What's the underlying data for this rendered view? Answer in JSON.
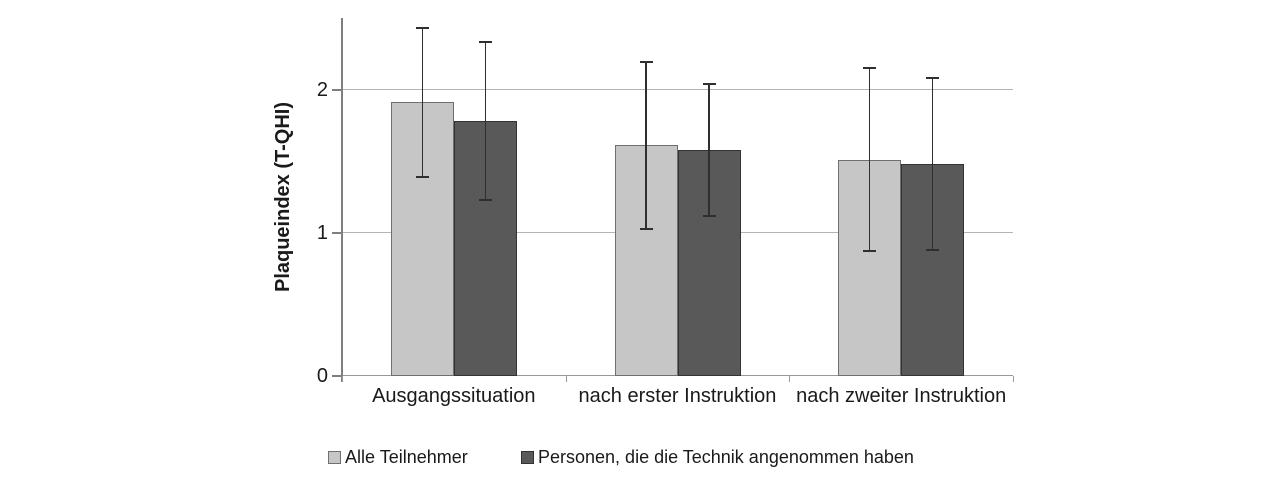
{
  "figure": {
    "background": "#ffffff"
  },
  "chart_data": {
    "type": "bar",
    "title": "",
    "categories": [
      "Ausgangssituation",
      "nach erster Instruktion",
      "nach zweiter Instruktion"
    ],
    "series": [
      {
        "name": "Alle Teilnehmer",
        "fill": "#c6c6c6",
        "border": "#6f6f6f",
        "values": [
          1.91,
          1.61,
          1.51
        ],
        "errors": [
          0.52,
          0.58,
          0.64
        ]
      },
      {
        "name": "Personen, die die Technik angenommen haben",
        "fill": "#595959",
        "border": "#333333",
        "values": [
          1.78,
          1.58,
          1.48
        ],
        "errors": [
          0.55,
          0.46,
          0.6
        ]
      }
    ],
    "xlabel": "",
    "ylabel": "Plaqueindex (T-QHI)",
    "ylim": [
      0,
      2.5
    ],
    "yticks": [
      0,
      1,
      2
    ],
    "gridline_values": [
      1,
      2
    ],
    "grid": "horizontal",
    "legend_position": "bottom",
    "colors": {
      "gridline": "#b3b3b3",
      "axis": "#7f7f7f",
      "baseline": "#999999",
      "error_bar": "#2f2f2f",
      "text": "#1a1a1a"
    }
  }
}
